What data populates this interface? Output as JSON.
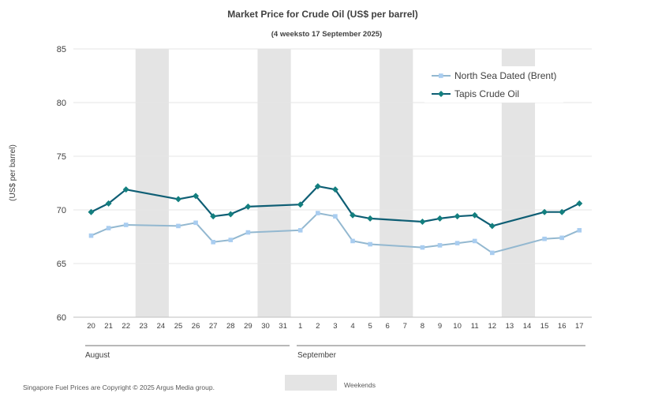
{
  "chart_data": {
    "type": "line",
    "title": "Market Price for Crude  Oil (US$ per barrel)",
    "subtitle": "(4 weeksto 17 September 2025)",
    "ylabel": "(US$ per barrel)",
    "ylim": [
      60,
      85
    ],
    "yticks": [
      "60",
      "65",
      "70",
      "75",
      "80",
      "85"
    ],
    "categories": [
      "20",
      "21",
      "22",
      "23",
      "24",
      "25",
      "26",
      "27",
      "28",
      "29",
      "30",
      "31",
      "1",
      "2",
      "3",
      "4",
      "5",
      "6",
      "7",
      "8",
      "9",
      "10",
      "11",
      "12",
      "13",
      "14",
      "15",
      "16",
      "17"
    ],
    "months": [
      "August",
      "September"
    ],
    "weekend_label": "Weekends",
    "weekend_color": "#e4e4e4",
    "weekends": [
      [
        "23",
        "24"
      ],
      [
        "30",
        "31"
      ],
      [
        "6",
        "7"
      ],
      [
        "13",
        "14"
      ]
    ],
    "legend_position": "top-right",
    "series": [
      {
        "name": "North Sea Dated (Brent)",
        "color": "#93b8d0",
        "marker_color": "#a9cdf0",
        "marker": "square",
        "values": [
          67.6,
          68.3,
          68.6,
          null,
          null,
          68.5,
          68.8,
          67.0,
          67.2,
          67.9,
          null,
          null,
          68.1,
          69.7,
          69.4,
          67.1,
          66.8,
          null,
          null,
          66.5,
          66.7,
          66.9,
          67.1,
          66.0,
          null,
          null,
          67.3,
          67.4,
          68.1
        ]
      },
      {
        "name": "Tapis Crude Oil",
        "color": "#0e5e74",
        "marker_color": "#137f7f",
        "marker": "diamond",
        "values": [
          69.8,
          70.6,
          71.9,
          null,
          null,
          71.0,
          71.3,
          69.4,
          69.6,
          70.3,
          null,
          null,
          70.5,
          72.2,
          71.9,
          69.5,
          69.2,
          null,
          null,
          68.9,
          69.2,
          69.4,
          69.5,
          68.5,
          null,
          null,
          69.8,
          69.8,
          70.6
        ]
      }
    ]
  },
  "footer": {
    "copyright": "Singapore Fuel Prices are Copyright © 2025 Argus Media group."
  }
}
